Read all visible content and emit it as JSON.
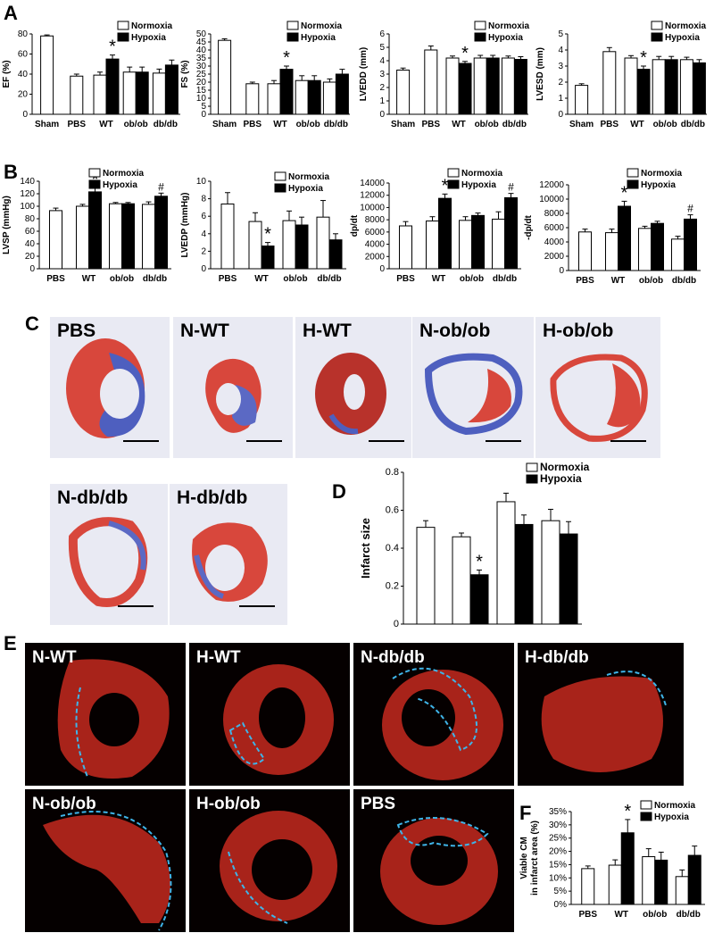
{
  "panels": {
    "A": "A",
    "B": "B",
    "C": "C",
    "D": "D",
    "E": "E",
    "F": "F"
  },
  "legend": {
    "normoxia": "Normoxia",
    "hypoxia": "Hypoxia"
  },
  "colors": {
    "normoxia": "#ffffff",
    "hypoxia": "#000000",
    "infarct_outline": "#3fb4e8",
    "fluor_tissue": "#b8261a",
    "photo_tissue": "#d8473c",
    "scar": "#4e5fbf"
  },
  "photo_labels": [
    "PBS",
    "N-WT",
    "H-WT",
    "N-ob/ob",
    "H-ob/ob",
    "N-db/db",
    "H-db/db"
  ],
  "fluor_labels": [
    "N-WT",
    "H-WT",
    "N-db/db",
    "H-db/db",
    "N-ob/ob",
    "H-ob/ob",
    "PBS"
  ],
  "chart_data": [
    {
      "id": "EF",
      "type": "bar",
      "ylabel": "EF (%)",
      "ylim": [
        0,
        80
      ],
      "yticks": [
        0,
        20,
        40,
        60,
        80
      ],
      "groups": [
        "Sham",
        "PBS",
        "WT",
        "ob/ob",
        "db/db"
      ],
      "bars": [
        {
          "group": "Sham",
          "series": "Normoxia",
          "value": 78,
          "err": 1
        },
        {
          "group": "PBS",
          "series": "Normoxia",
          "value": 38,
          "err": 2
        },
        {
          "group": "WT",
          "series": "Normoxia",
          "value": 39,
          "err": 3
        },
        {
          "group": "WT",
          "series": "Hypoxia",
          "value": 55,
          "err": 4,
          "mark": "*"
        },
        {
          "group": "ob/ob",
          "series": "Normoxia",
          "value": 42,
          "err": 5
        },
        {
          "group": "ob/ob",
          "series": "Hypoxia",
          "value": 42,
          "err": 5
        },
        {
          "group": "db/db",
          "series": "Normoxia",
          "value": 41,
          "err": 4
        },
        {
          "group": "db/db",
          "series": "Hypoxia",
          "value": 49,
          "err": 5
        }
      ]
    },
    {
      "id": "FS",
      "type": "bar",
      "ylabel": "FS (%)",
      "ylim": [
        0,
        50
      ],
      "yticks": [
        0,
        5,
        10,
        15,
        20,
        25,
        30,
        35,
        40,
        45,
        50
      ],
      "groups": [
        "Sham",
        "PBS",
        "WT",
        "ob/ob",
        "db/db"
      ],
      "bars": [
        {
          "group": "Sham",
          "series": "Normoxia",
          "value": 46,
          "err": 1
        },
        {
          "group": "PBS",
          "series": "Normoxia",
          "value": 19,
          "err": 1
        },
        {
          "group": "WT",
          "series": "Normoxia",
          "value": 19,
          "err": 2
        },
        {
          "group": "WT",
          "series": "Hypoxia",
          "value": 28,
          "err": 2,
          "mark": "*"
        },
        {
          "group": "ob/ob",
          "series": "Normoxia",
          "value": 21,
          "err": 3
        },
        {
          "group": "ob/ob",
          "series": "Hypoxia",
          "value": 21,
          "err": 3
        },
        {
          "group": "db/db",
          "series": "Normoxia",
          "value": 20,
          "err": 2
        },
        {
          "group": "db/db",
          "series": "Hypoxia",
          "value": 25,
          "err": 3
        }
      ]
    },
    {
      "id": "LVEDD",
      "type": "bar",
      "ylabel": "LVEDD (mm)",
      "ylim": [
        0,
        6
      ],
      "yticks": [
        0,
        1,
        2,
        3,
        4,
        5,
        6
      ],
      "groups": [
        "Sham",
        "PBS",
        "WT",
        "ob/ob",
        "db/db"
      ],
      "bars": [
        {
          "group": "Sham",
          "series": "Normoxia",
          "value": 3.3,
          "err": 0.15
        },
        {
          "group": "PBS",
          "series": "Normoxia",
          "value": 4.8,
          "err": 0.3
        },
        {
          "group": "WT",
          "series": "Normoxia",
          "value": 4.2,
          "err": 0.15
        },
        {
          "group": "WT",
          "series": "Hypoxia",
          "value": 3.8,
          "err": 0.15,
          "mark": "*"
        },
        {
          "group": "ob/ob",
          "series": "Normoxia",
          "value": 4.2,
          "err": 0.2
        },
        {
          "group": "ob/ob",
          "series": "Hypoxia",
          "value": 4.2,
          "err": 0.2
        },
        {
          "group": "db/db",
          "series": "Normoxia",
          "value": 4.2,
          "err": 0.15
        },
        {
          "group": "db/db",
          "series": "Hypoxia",
          "value": 4.1,
          "err": 0.2
        }
      ]
    },
    {
      "id": "LVESD",
      "type": "bar",
      "ylabel": "LVESD (mm)",
      "ylim": [
        0,
        5
      ],
      "yticks": [
        0,
        1,
        2,
        3,
        4,
        5
      ],
      "groups": [
        "Sham",
        "PBS",
        "WT",
        "ob/ob",
        "db/db"
      ],
      "bars": [
        {
          "group": "Sham",
          "series": "Normoxia",
          "value": 1.8,
          "err": 0.1
        },
        {
          "group": "PBS",
          "series": "Normoxia",
          "value": 3.9,
          "err": 0.25
        },
        {
          "group": "WT",
          "series": "Normoxia",
          "value": 3.5,
          "err": 0.15
        },
        {
          "group": "WT",
          "series": "Hypoxia",
          "value": 2.8,
          "err": 0.2,
          "mark": "*"
        },
        {
          "group": "ob/ob",
          "series": "Normoxia",
          "value": 3.4,
          "err": 0.2
        },
        {
          "group": "ob/ob",
          "series": "Hypoxia",
          "value": 3.4,
          "err": 0.2
        },
        {
          "group": "db/db",
          "series": "Normoxia",
          "value": 3.4,
          "err": 0.15
        },
        {
          "group": "db/db",
          "series": "Hypoxia",
          "value": 3.2,
          "err": 0.2
        }
      ]
    },
    {
      "id": "LVSP",
      "type": "bar",
      "ylabel": "LVSP (mmHg)",
      "ylim": [
        0,
        140
      ],
      "yticks": [
        0,
        20,
        40,
        60,
        80,
        100,
        120,
        140
      ],
      "groups": [
        "PBS",
        "WT",
        "ob/ob",
        "db/db"
      ],
      "bars": [
        {
          "group": "PBS",
          "series": "Normoxia",
          "value": 93,
          "err": 4
        },
        {
          "group": "WT",
          "series": "Normoxia",
          "value": 100,
          "err": 3
        },
        {
          "group": "WT",
          "series": "Hypoxia",
          "value": 123,
          "err": 6,
          "mark": "*"
        },
        {
          "group": "ob/ob",
          "series": "Normoxia",
          "value": 104,
          "err": 2
        },
        {
          "group": "ob/ob",
          "series": "Hypoxia",
          "value": 104,
          "err": 2
        },
        {
          "group": "db/db",
          "series": "Normoxia",
          "value": 103,
          "err": 4
        },
        {
          "group": "db/db",
          "series": "Hypoxia",
          "value": 116,
          "err": 5,
          "mark": "#"
        }
      ]
    },
    {
      "id": "LVEDP",
      "type": "bar",
      "ylabel": "LVEDP (mmHg)",
      "ylim": [
        0,
        10
      ],
      "yticks": [
        0,
        2,
        4,
        6,
        8,
        10
      ],
      "groups": [
        "PBS",
        "WT",
        "ob/ob",
        "db/db"
      ],
      "bars": [
        {
          "group": "PBS",
          "series": "Normoxia",
          "value": 7.4,
          "err": 1.3
        },
        {
          "group": "WT",
          "series": "Normoxia",
          "value": 5.4,
          "err": 1.0
        },
        {
          "group": "WT",
          "series": "Hypoxia",
          "value": 2.6,
          "err": 0.4,
          "mark": "*"
        },
        {
          "group": "ob/ob",
          "series": "Normoxia",
          "value": 5.5,
          "err": 1.1
        },
        {
          "group": "ob/ob",
          "series": "Hypoxia",
          "value": 5.0,
          "err": 0.9
        },
        {
          "group": "db/db",
          "series": "Normoxia",
          "value": 5.9,
          "err": 1.9
        },
        {
          "group": "db/db",
          "series": "Hypoxia",
          "value": 3.3,
          "err": 0.7
        }
      ]
    },
    {
      "id": "dpdt",
      "type": "bar",
      "ylabel": "dp/dt",
      "ylim": [
        0,
        14000
      ],
      "yticks": [
        0,
        2000,
        4000,
        6000,
        8000,
        10000,
        12000,
        14000
      ],
      "groups": [
        "PBS",
        "WT",
        "ob/ob",
        "db/db"
      ],
      "bars": [
        {
          "group": "PBS",
          "series": "Normoxia",
          "value": 7000,
          "err": 700
        },
        {
          "group": "WT",
          "series": "Normoxia",
          "value": 7800,
          "err": 700
        },
        {
          "group": "WT",
          "series": "Hypoxia",
          "value": 11500,
          "err": 700,
          "mark": "*"
        },
        {
          "group": "ob/ob",
          "series": "Normoxia",
          "value": 7900,
          "err": 600
        },
        {
          "group": "ob/ob",
          "series": "Hypoxia",
          "value": 8700,
          "err": 400
        },
        {
          "group": "db/db",
          "series": "Normoxia",
          "value": 8100,
          "err": 1200
        },
        {
          "group": "db/db",
          "series": "Hypoxia",
          "value": 11600,
          "err": 700,
          "mark": "#"
        }
      ]
    },
    {
      "id": "neg_dpdt",
      "type": "bar",
      "ylabel": "-dp/dt",
      "ylim": [
        0,
        12000
      ],
      "yticks": [
        0,
        2000,
        4000,
        6000,
        8000,
        10000,
        12000
      ],
      "groups": [
        "PBS",
        "WT",
        "ob/ob",
        "db/db"
      ],
      "bars": [
        {
          "group": "PBS",
          "series": "Normoxia",
          "value": 5400,
          "err": 400
        },
        {
          "group": "WT",
          "series": "Normoxia",
          "value": 5300,
          "err": 500
        },
        {
          "group": "WT",
          "series": "Hypoxia",
          "value": 9000,
          "err": 700,
          "mark": "*"
        },
        {
          "group": "ob/ob",
          "series": "Normoxia",
          "value": 5900,
          "err": 300
        },
        {
          "group": "ob/ob",
          "series": "Hypoxia",
          "value": 6600,
          "err": 300
        },
        {
          "group": "db/db",
          "series": "Normoxia",
          "value": 4400,
          "err": 400
        },
        {
          "group": "db/db",
          "series": "Hypoxia",
          "value": 7200,
          "err": 600,
          "mark": "#"
        }
      ]
    },
    {
      "id": "infarct",
      "type": "bar",
      "ylabel": "Infarct size",
      "ylim": [
        0,
        0.8
      ],
      "yticks": [
        0.0,
        0.2,
        0.4,
        0.6,
        0.8
      ],
      "groups": [
        "PBS",
        "WT",
        "ob/ob",
        "db/db"
      ],
      "bars": [
        {
          "group": "PBS",
          "series": "Normoxia",
          "value": 0.51,
          "err": 0.035
        },
        {
          "group": "WT",
          "series": "Normoxia",
          "value": 0.46,
          "err": 0.02
        },
        {
          "group": "WT",
          "series": "Hypoxia",
          "value": 0.26,
          "err": 0.025,
          "mark": "*"
        },
        {
          "group": "ob/ob",
          "series": "Normoxia",
          "value": 0.645,
          "err": 0.045
        },
        {
          "group": "ob/ob",
          "series": "Hypoxia",
          "value": 0.525,
          "err": 0.05
        },
        {
          "group": "db/db",
          "series": "Normoxia",
          "value": 0.545,
          "err": 0.06
        },
        {
          "group": "db/db",
          "series": "Hypoxia",
          "value": 0.475,
          "err": 0.065
        }
      ]
    },
    {
      "id": "viable",
      "type": "bar",
      "ylabel": "Viable CM\nin infarct area (%)",
      "ylim": [
        0,
        35
      ],
      "yticks": [
        "0%",
        "5%",
        "10%",
        "15%",
        "20%",
        "25%",
        "30%",
        "35%"
      ],
      "groups": [
        "PBS",
        "WT",
        "ob/ob",
        "db/db"
      ],
      "bars": [
        {
          "group": "PBS",
          "series": "Normoxia",
          "value": 13.5,
          "err": 1
        },
        {
          "group": "WT",
          "series": "Normoxia",
          "value": 14.8,
          "err": 2
        },
        {
          "group": "WT",
          "series": "Hypoxia",
          "value": 27,
          "err": 5,
          "mark": "*"
        },
        {
          "group": "ob/ob",
          "series": "Normoxia",
          "value": 18,
          "err": 3
        },
        {
          "group": "ob/ob",
          "series": "Hypoxia",
          "value": 16.7,
          "err": 3
        },
        {
          "group": "db/db",
          "series": "Normoxia",
          "value": 10.5,
          "err": 2.5
        },
        {
          "group": "db/db",
          "series": "Hypoxia",
          "value": 18.5,
          "err": 3.5
        }
      ]
    }
  ]
}
